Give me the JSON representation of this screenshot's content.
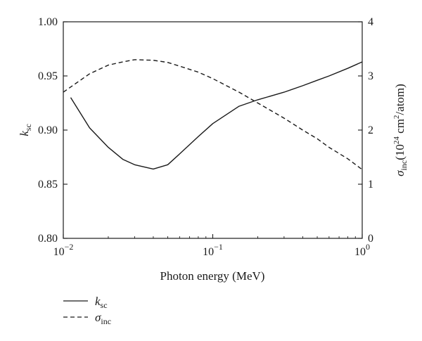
{
  "chart_data": {
    "type": "line",
    "xlabel": "Photon energy (MeV)",
    "xscale": "log",
    "xlim": [
      0.01,
      1
    ],
    "x_ticks": [
      {
        "value": 0.01,
        "base": "10",
        "exp": "−2"
      },
      {
        "value": 0.1,
        "base": "10",
        "exp": "−1"
      },
      {
        "value": 1,
        "base": "10",
        "exp": "0"
      }
    ],
    "y_left": {
      "label_symbol": "k",
      "label_sub": "sc",
      "lim": [
        0.8,
        1.0
      ],
      "ticks": [
        "0.80",
        "0.85",
        "0.90",
        "0.95",
        "1.00"
      ],
      "tick_values": [
        0.8,
        0.85,
        0.9,
        0.95,
        1.0
      ]
    },
    "y_right": {
      "label_symbol": "σ",
      "label_sub": "inc",
      "label_unit_pre": "(10",
      "label_unit_exp1": "24",
      "label_unit_mid": " cm",
      "label_unit_exp2": "2",
      "label_unit_post": "/atom)",
      "lim": [
        0,
        4
      ],
      "ticks": [
        "0",
        "1",
        "2",
        "3",
        "4"
      ],
      "tick_values": [
        0,
        1,
        2,
        3,
        4
      ]
    },
    "grid": false,
    "legend_position": "bottom-left",
    "series": [
      {
        "name": "k_sc",
        "legend_symbol": "k",
        "legend_sub": "sc",
        "axis": "left",
        "style": "solid",
        "color": "#1a1a1a",
        "x": [
          0.0112,
          0.015,
          0.02,
          0.025,
          0.03,
          0.04,
          0.05,
          0.06,
          0.08,
          0.1,
          0.15,
          0.2,
          0.3,
          0.4,
          0.5,
          0.6,
          0.8,
          1.0
        ],
        "y": [
          0.93,
          0.902,
          0.884,
          0.873,
          0.868,
          0.864,
          0.868,
          0.878,
          0.894,
          0.906,
          0.922,
          0.928,
          0.935,
          0.941,
          0.946,
          0.95,
          0.957,
          0.963
        ]
      },
      {
        "name": "sigma_inc",
        "legend_symbol": "σ",
        "legend_sub": "inc",
        "axis": "right",
        "style": "dashed",
        "color": "#1a1a1a",
        "x": [
          0.01,
          0.015,
          0.02,
          0.025,
          0.03,
          0.04,
          0.05,
          0.06,
          0.08,
          0.1,
          0.15,
          0.2,
          0.3,
          0.4,
          0.5,
          0.6,
          0.8,
          1.0
        ],
        "y": [
          2.7,
          3.04,
          3.2,
          3.26,
          3.3,
          3.29,
          3.25,
          3.18,
          3.07,
          2.95,
          2.7,
          2.5,
          2.22,
          2.0,
          1.84,
          1.68,
          1.47,
          1.27
        ]
      }
    ]
  }
}
